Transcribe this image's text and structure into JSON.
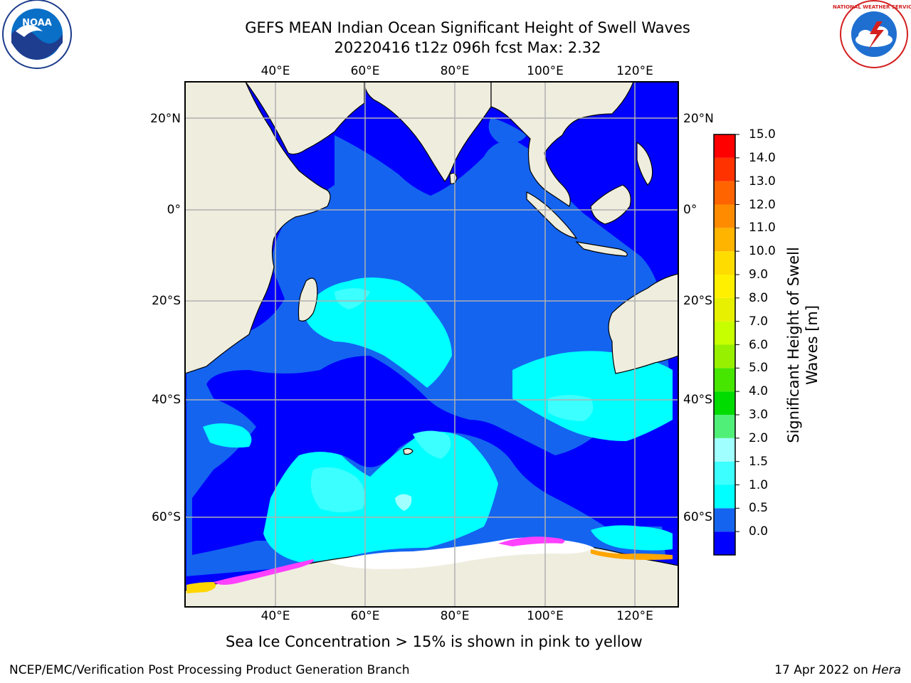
{
  "title": {
    "line1": "GEFS MEAN Indian Ocean Significant Height of Swell Waves",
    "line2": "20220416 t12z 096h fcst   Max: 2.32"
  },
  "map": {
    "lon_labels": [
      "40°E",
      "60°E",
      "80°E",
      "100°E",
      "120°E"
    ],
    "lat_labels": [
      "20°N",
      "0°",
      "20°S",
      "40°S",
      "60°S"
    ]
  },
  "colorbar": {
    "title_line1": "Significant Height of Swell",
    "title_line2": "Waves [m]",
    "ticks": [
      "15.0",
      "14.0",
      "13.0",
      "12.0",
      "11.0",
      "10.0",
      "9.0",
      "8.0",
      "7.0",
      "6.0",
      "5.0",
      "4.0",
      "3.0",
      "2.0",
      "1.5",
      "1.0",
      "0.5",
      "0.0"
    ],
    "colors": [
      "#0000ff",
      "#1464f0",
      "#00ffff",
      "#3cffff",
      "#a0ffff",
      "#50f078",
      "#00dc00",
      "#46e600",
      "#96f000",
      "#c8ff00",
      "#e6f000",
      "#fff000",
      "#ffdc00",
      "#ffb400",
      "#ff8c00",
      "#ff6400",
      "#ff3200",
      "#ff0000"
    ]
  },
  "palette": {
    "land": "#efedde",
    "sea_ice": "#ffffff",
    "grid": "#b0b0b0"
  },
  "footnote": "Sea Ice Concentration > 15% is shown in pink to yellow",
  "credit": "NCEP/EMC/Verification Post Processing Product Generation Branch",
  "date": {
    "text": "17 Apr 2022 on",
    "host": "Hera"
  },
  "logos": {
    "left": "NOAA",
    "right": "NATIONAL WEATHER SERVICE"
  }
}
